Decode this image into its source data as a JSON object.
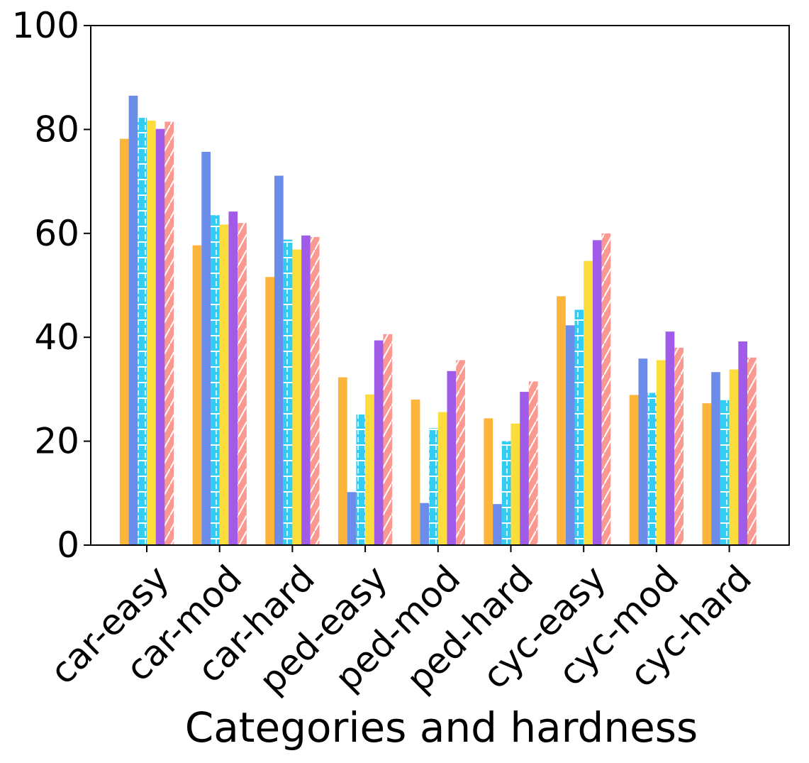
{
  "chart_data": {
    "type": "bar",
    "title": "",
    "xlabel": "Categories and hardness",
    "ylabel": "",
    "ylim": [
      0,
      100
    ],
    "yticks": [
      "0",
      "20",
      "40",
      "60",
      "80",
      "100"
    ],
    "grid": false,
    "legend": "none",
    "categories": [
      "car-easy",
      "car-mod",
      "car-hard",
      "ped-easy",
      "ped-mod",
      "ped-hard",
      "cyc-easy",
      "cyc-mod",
      "cyc-hard"
    ],
    "series": [
      {
        "color": "#FDB43A",
        "hatch": "none",
        "values": [
          78.2,
          57.7,
          51.6,
          32.3,
          28.0,
          24.4,
          47.9,
          28.9,
          27.3
        ]
      },
      {
        "color": "#6B8CE8",
        "hatch": "none",
        "values": [
          86.5,
          75.7,
          71.1,
          10.2,
          8.1,
          7.9,
          42.3,
          35.9,
          33.3
        ]
      },
      {
        "color": "#33CCF3",
        "hatch": "grid",
        "values": [
          82.3,
          63.5,
          58.8,
          25.4,
          22.5,
          20.0,
          45.3,
          29.3,
          27.9
        ]
      },
      {
        "color": "#FDDD3B",
        "hatch": "none",
        "values": [
          81.7,
          61.7,
          56.9,
          29.0,
          25.6,
          23.4,
          54.7,
          35.6,
          33.8
        ]
      },
      {
        "color": "#A05CE9",
        "hatch": "none",
        "values": [
          80.1,
          64.2,
          59.6,
          39.4,
          33.5,
          29.5,
          58.7,
          41.1,
          39.2
        ]
      },
      {
        "color": "#FB9890",
        "hatch": "slash",
        "values": [
          81.5,
          62.0,
          59.3,
          40.6,
          35.6,
          31.5,
          60.0,
          38.0,
          36.1
        ]
      }
    ]
  }
}
